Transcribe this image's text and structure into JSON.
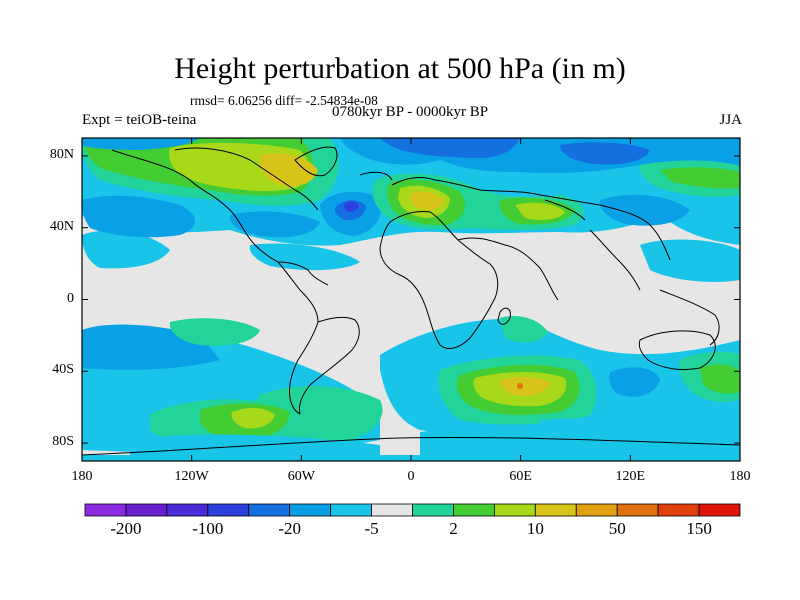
{
  "title": "Height perturbation at 500 hPa (in m)",
  "stats_line": "rmsd= 6.06256 diff= -2.54834e-08",
  "period": "0780kyr BP - 0000kyr BP",
  "experiment": "Expt = teiOB-teina",
  "season": "JJA",
  "y_axis": {
    "ticks": [
      {
        "label": "80N",
        "lat": 80
      },
      {
        "label": "40N",
        "lat": 40
      },
      {
        "label": "0",
        "lat": 0
      },
      {
        "label": "40S",
        "lat": -40
      },
      {
        "label": "80S",
        "lat": -80
      }
    ]
  },
  "x_axis": {
    "ticks": [
      {
        "label": "180",
        "lon": -180
      },
      {
        "label": "120W",
        "lon": -120
      },
      {
        "label": "60W",
        "lon": -60
      },
      {
        "label": "0",
        "lon": 0
      },
      {
        "label": "60E",
        "lon": 60
      },
      {
        "label": "120E",
        "lon": 120
      },
      {
        "label": "180",
        "lon": 180
      }
    ]
  },
  "colorbar": {
    "colors": [
      "#8a2be2",
      "#6a1fd0",
      "#4b2bd6",
      "#2a3fdc",
      "#1470e0",
      "#0aa0e6",
      "#18c4e8",
      "#e6e6e6",
      "#22d49a",
      "#44cc33",
      "#a8d81a",
      "#d8c418",
      "#e0a012",
      "#e0700e",
      "#e0400a",
      "#e0140a"
    ],
    "labels": [
      {
        "text": "-200",
        "index": 1
      },
      {
        "text": "-100",
        "index": 3
      },
      {
        "text": "-20",
        "index": 5
      },
      {
        "text": "-5",
        "index": 7
      },
      {
        "text": "2",
        "index": 9
      },
      {
        "text": "10",
        "index": 11
      },
      {
        "text": "50",
        "index": 13
      },
      {
        "text": "150",
        "index": 15
      }
    ]
  }
}
